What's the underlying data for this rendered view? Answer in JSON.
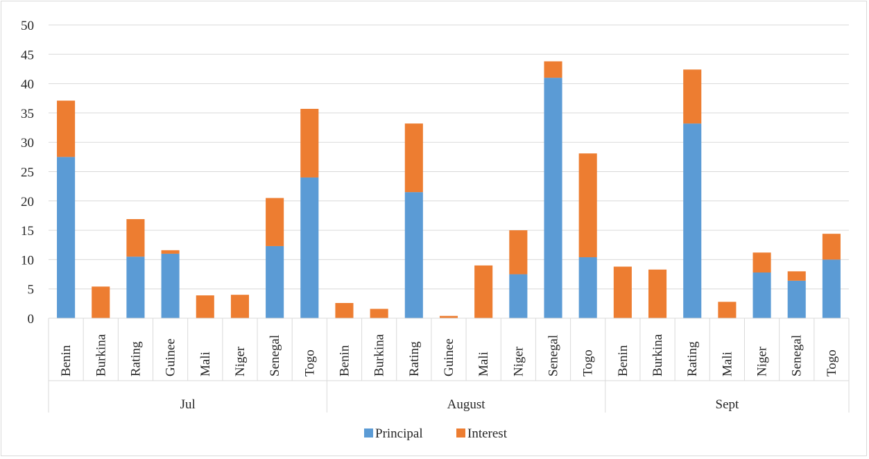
{
  "chart_data": {
    "type": "bar",
    "stacked": true,
    "groups": [
      {
        "label": "Jul",
        "categories": [
          "Benin",
          "Burkina",
          "Rating",
          "Guinee",
          "Mali",
          "Niger",
          "Senegal",
          "Togo"
        ]
      },
      {
        "label": "August",
        "categories": [
          "Benin",
          "Burkina",
          "Rating",
          "Guinee",
          "Mali",
          "Niger",
          "Senegal",
          "Togo"
        ]
      },
      {
        "label": "Sept",
        "categories": [
          "Benin",
          "Burkina",
          "Rating",
          "Mali",
          "Niger",
          "Senegal",
          "Togo"
        ]
      }
    ],
    "series": [
      {
        "name": "Principal",
        "color": "#5b9bd5",
        "values": [
          27.5,
          0,
          10.5,
          11,
          0,
          0,
          12.3,
          24,
          0,
          0,
          21.5,
          0,
          0,
          7.5,
          41,
          10.4,
          0,
          0,
          33.2,
          0,
          7.8,
          6.4,
          10
        ]
      },
      {
        "name": "Interest",
        "color": "#ed7d31",
        "values": [
          9.6,
          5.4,
          6.4,
          0.6,
          3.9,
          4,
          8.2,
          11.7,
          2.6,
          1.6,
          11.7,
          0.4,
          9,
          7.5,
          2.8,
          17.7,
          8.8,
          8.3,
          9.2,
          2.8,
          3.4,
          1.6,
          4.4
        ]
      }
    ],
    "ylim": [
      0,
      50
    ],
    "yticks": [
      0,
      5,
      10,
      15,
      20,
      25,
      30,
      35,
      40,
      45,
      50
    ],
    "grid": true,
    "legend": "bottom-center",
    "title": "",
    "xlabel": "",
    "ylabel": ""
  }
}
